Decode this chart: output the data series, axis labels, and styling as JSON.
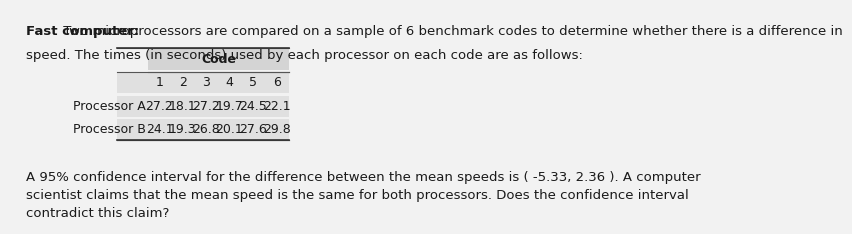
{
  "title_bold": "Fast computer:",
  "title_normal": " Two microprocessors are compared on a sample of 6 benchmark codes to determine whether there is a difference in\nspeed. The times (in seconds) used by each processor on each code are as follows:",
  "table_header_top": "Code",
  "table_col_headers": [
    "1",
    "2",
    "3",
    "4",
    "5",
    "6"
  ],
  "row_labels": [
    "Processor A",
    "Processor B"
  ],
  "row_A": [
    "27.2",
    "18.1",
    "27.2",
    "19.7",
    "24.5",
    "22.1"
  ],
  "row_B": [
    "24.1",
    "19.3",
    "26.8",
    "20.1",
    "27.6",
    "29.8"
  ],
  "body_text": "A 95% confidence interval for the difference between the mean speeds is ( -5.33, 2.36 ). A computer\nscientist claims that the mean speed is the same for both processors. Does the confidence interval\ncontradict this claim?",
  "bg_color": "#f0f0f0",
  "table_header_bg": "#d0d0d0",
  "table_bg": "#e8e8e8",
  "text_color": "#1a1a1a",
  "font_size_text": 9.5,
  "font_size_table": 9.0
}
